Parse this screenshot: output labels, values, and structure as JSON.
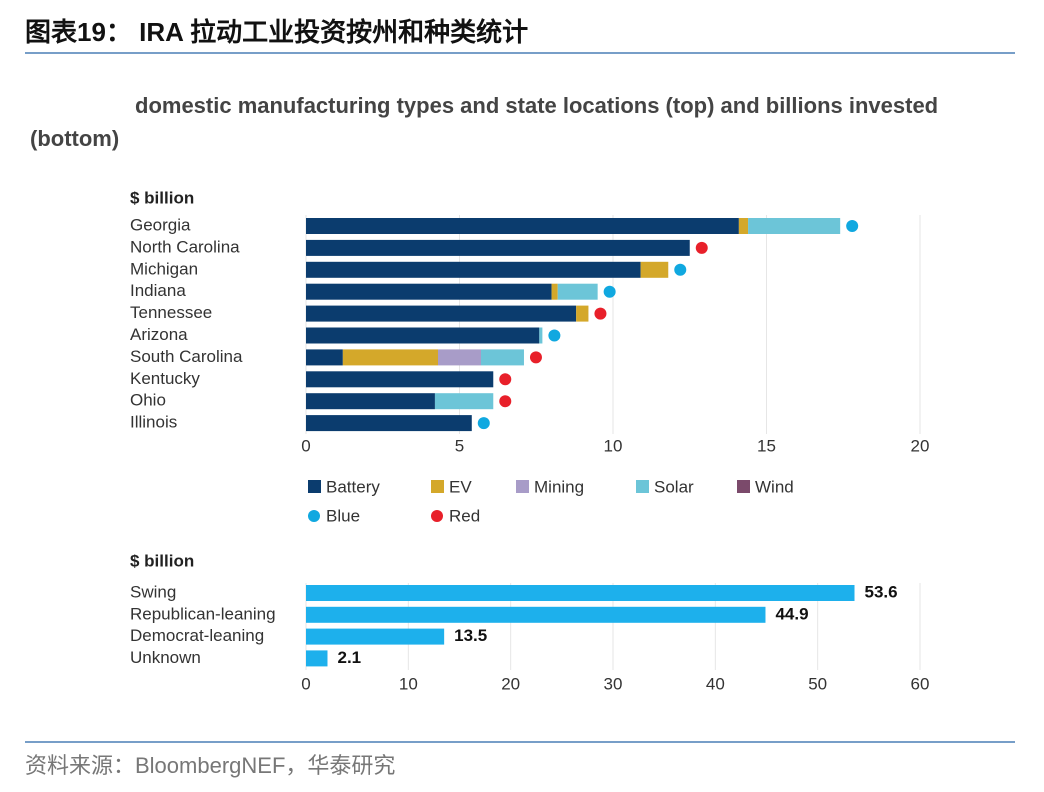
{
  "header": {
    "title": "图表19： IRA 拉动工业投资按州和种类统计"
  },
  "subtitle": "domestic manufacturing types and state locations (top) and billions invested (bottom)",
  "chart_data": [
    {
      "type": "stacked_bar_horizontal",
      "unit_label": "$ billion",
      "categories": [
        "Georgia",
        "North Carolina",
        "Michigan",
        "Indiana",
        "Tennessee",
        "Arizona",
        "South Carolina",
        "Kentucky",
        "Ohio",
        "Illinois"
      ],
      "series": [
        {
          "name": "Battery",
          "color": "#0b3c6e",
          "values": [
            14.1,
            12.5,
            10.9,
            8.0,
            8.8,
            7.6,
            1.2,
            6.1,
            4.2,
            5.4
          ]
        },
        {
          "name": "EV",
          "color": "#d4a82a",
          "values": [
            0.3,
            0,
            0.9,
            0.2,
            0.4,
            0,
            3.1,
            0,
            0,
            0
          ]
        },
        {
          "name": "Mining",
          "color": "#a89cc8",
          "values": [
            0,
            0,
            0,
            0,
            0,
            0,
            1.4,
            0,
            0,
            0
          ]
        },
        {
          "name": "Solar",
          "color": "#6cc5d8",
          "values": [
            3.0,
            0,
            0,
            1.3,
            0,
            0.1,
            1.4,
            0,
            1.9,
            0
          ]
        },
        {
          "name": "Wind",
          "color": "#7b4a6b",
          "values": [
            0,
            0,
            0,
            0,
            0,
            0,
            0,
            0,
            0,
            0
          ]
        }
      ],
      "markers": [
        {
          "name": "Blue",
          "color": "#10a8e0"
        },
        {
          "name": "Red",
          "color": "#e8202a"
        }
      ],
      "lean": [
        "Blue",
        "Red",
        "Blue",
        "Blue",
        "Red",
        "Blue",
        "Red",
        "Red",
        "Red",
        "Blue"
      ],
      "xlim": [
        0,
        20
      ],
      "xticks": [
        0,
        5,
        10,
        15,
        20
      ],
      "grid": true
    },
    {
      "type": "bar_horizontal",
      "unit_label": "$ billion",
      "categories": [
        "Swing",
        "Republican-leaning",
        "Democrat-leaning",
        "Unknown"
      ],
      "values": [
        53.6,
        44.9,
        13.5,
        2.1
      ],
      "color": "#1db0ec",
      "xlim": [
        0,
        60
      ],
      "xticks": [
        0,
        10,
        20,
        30,
        40,
        50,
        60
      ],
      "grid": true
    }
  ],
  "source": "资料来源：BloombergNEF，华泰研究"
}
